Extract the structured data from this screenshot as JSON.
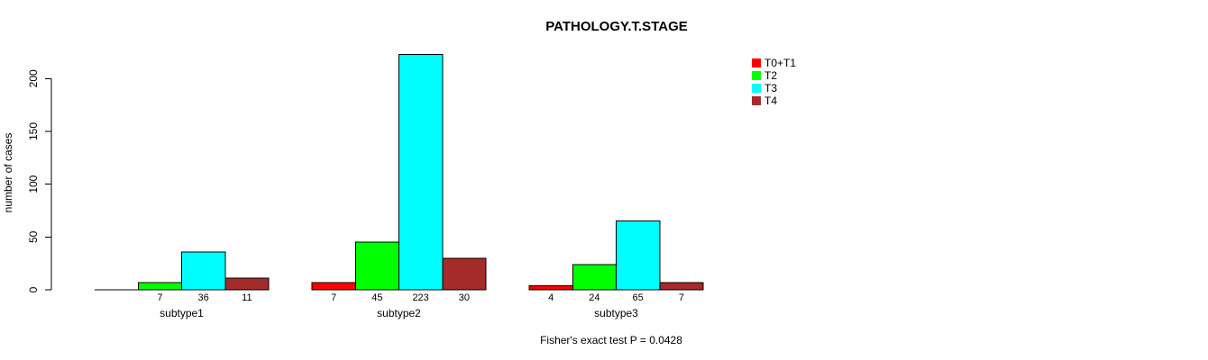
{
  "page": {
    "background": "#FFFFFF",
    "text_color": "#000000"
  },
  "chart_data": {
    "type": "bar",
    "title": "PATHOLOGY.T.STAGE",
    "ylabel": "number of cases",
    "xlabel": "",
    "categories": [
      "subtype1",
      "subtype2",
      "subtype3"
    ],
    "series": [
      {
        "name": "T0+T1",
        "color": "#FF0000",
        "values": [
          0,
          7,
          4
        ],
        "bar_labels": [
          "",
          "7",
          "4"
        ]
      },
      {
        "name": "T2",
        "color": "#00FF00",
        "values": [
          7,
          45,
          24
        ],
        "bar_labels": [
          "7",
          "45",
          "24"
        ]
      },
      {
        "name": "T3",
        "color": "#00FFFF",
        "values": [
          36,
          223,
          65
        ],
        "bar_labels": [
          "36",
          "223",
          "65"
        ]
      },
      {
        "name": "T4",
        "color": "#A52A2A",
        "values": [
          11,
          30,
          7
        ],
        "bar_labels": [
          "11",
          "30",
          "7"
        ]
      }
    ],
    "yticks": [
      "0",
      "50",
      "100",
      "150",
      "200"
    ],
    "ylim": [
      0,
      235
    ],
    "grid": false,
    "legend_position": "right-inside",
    "bar_border_color": "#000000",
    "annotation": "Fisher's exact test P = 0.0428"
  }
}
